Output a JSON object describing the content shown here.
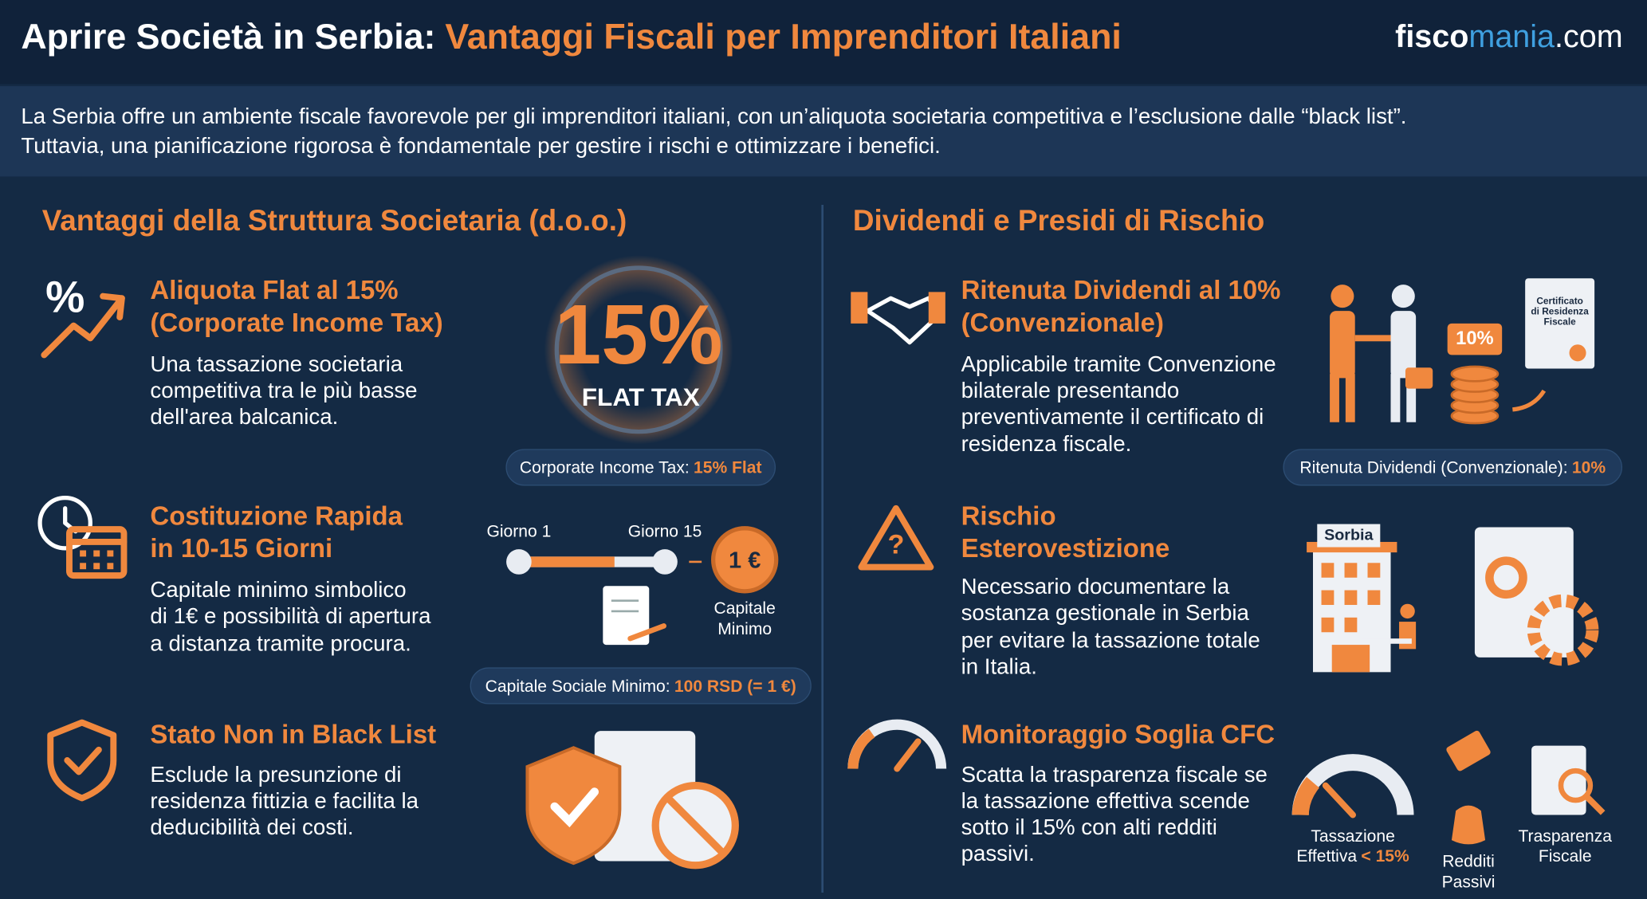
{
  "header": {
    "title_lead": "Aprire Società in Serbia:",
    "title_highlight": "Vantaggi Fiscali per Imprenditori Italiani",
    "brand": [
      "fisco",
      "mania",
      ".com"
    ]
  },
  "intro": [
    "La Serbia offre un ambiente fiscale favorevole per gli imprenditori italiani, con un’aliquota societaria competitiva e l’esclusione dalle “black list”.",
    "Tuttavia, una pianificazione rigorosa è fondamentale per gestire i rischi e ottimizzare i benefici."
  ],
  "left": {
    "heading": "Vantaggi della Struttura Societaria (d.o.o.)",
    "items": [
      {
        "icon_symbol": "%",
        "title": [
          "Aliquota Flat al 15%",
          "(Corporate Income Tax)"
        ],
        "description": [
          "Una tassazione societaria",
          "competitiva tra le più basse",
          "dell'area balcanica."
        ],
        "visual": {
          "big": "15%",
          "caption": "FLAT TAX"
        },
        "badge": {
          "label": "Corporate Income Tax:",
          "value": "15% Flat"
        }
      },
      {
        "title": [
          "Costituzione Rapida",
          "in 10-15 Giorni"
        ],
        "description": [
          "Capitale minimo simbolico",
          "di 1€ e possibilità di apertura",
          "a distanza tramite procura."
        ],
        "visual": {
          "start": "Giorno 1",
          "end": "Giorno 15",
          "coin": "1 €",
          "coin_caption": [
            "Capitale",
            "Minimo"
          ]
        },
        "badge": {
          "label": "Capitale Sociale Minimo:",
          "value": "100 RSD (= 1 €)"
        }
      },
      {
        "title": [
          "Stato Non in Black List"
        ],
        "description": [
          "Esclude la presunzione di",
          "residenza fittizia e facilita la",
          "deducibilità dei costi."
        ]
      }
    ]
  },
  "right": {
    "heading": "Dividendi e Presidi di Rischio",
    "items": [
      {
        "title": [
          "Ritenuta Dividendi al 10%",
          "(Convenzionale)"
        ],
        "description": [
          "Applicabile tramite Convenzione",
          "bilaterale presentando",
          "preventivamente il certificato di",
          "residenza fiscale."
        ],
        "visual": {
          "badge": "10%",
          "certificate": [
            "Certificato",
            "di Residenza",
            "Fiscale"
          ]
        },
        "badge": {
          "label": "Ritenuta Dividendi (Convenzionale):",
          "value": "10%"
        }
      },
      {
        "icon_symbol": "?",
        "title": [
          "Rischio",
          "Esterovestizione"
        ],
        "description": [
          "Necessario documentare la",
          "sostanza gestionale in Serbia",
          "per evitare la tassazione totale",
          "in Italia."
        ],
        "visual": {
          "sign": "Sorbia"
        }
      },
      {
        "title": [
          "Monitoraggio Soglia CFC"
        ],
        "description": [
          "Scatta la trasparenza fiscale se",
          "la tassazione effettiva scende",
          "sotto il 15% con alti redditi",
          "passivi."
        ],
        "visual": {
          "gauge": [
            "Tassazione",
            "Effettiva"
          ],
          "gauge_threshold": "< 15%",
          "income": [
            "Redditi",
            "Passivi"
          ],
          "transparency": [
            "Trasparenza",
            "Fiscale"
          ]
        }
      }
    ]
  }
}
